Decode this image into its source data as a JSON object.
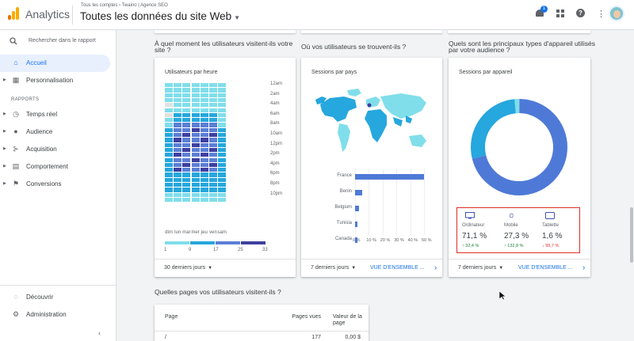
{
  "header": {
    "app_name": "Analytics",
    "breadcrumb": "Tous les comptes › Twaino | Agence SEO",
    "property": "Toutes les données du site Web",
    "notification_count": "1",
    "accent": "#1a73e8"
  },
  "sidebar": {
    "search_placeholder": "Rechercher dans le rapport",
    "home": "Accueil",
    "custom": "Personnalisation",
    "section_reports": "RAPPORTS",
    "items": [
      {
        "label": "Temps réel",
        "icon": "clock-icon"
      },
      {
        "label": "Audience",
        "icon": "person-icon"
      },
      {
        "label": "Acquisition",
        "icon": "acquisition-icon"
      },
      {
        "label": "Comportement",
        "icon": "behavior-icon"
      },
      {
        "label": "Conversions",
        "icon": "flag-icon"
      }
    ],
    "discover": "Découvrir",
    "admin": "Administration"
  },
  "questions": {
    "when": "À quel moment les utilisateurs visitent-ils votre site ?",
    "where": "Où vos utilisateurs se trouvent-ils ?",
    "devices": "Quels sont les principaux types d'appareil utilisés par votre audience ?",
    "pages": "Quelles pages vos utilisateurs visitent-ils ?"
  },
  "heatmap_card": {
    "title": "Utilisateurs par heure",
    "hours": [
      "12am",
      "2am",
      "4am",
      "6am",
      "8am",
      "10am",
      "12pm",
      "2pm",
      "4pm",
      "6pm",
      "8pm",
      "10pm"
    ],
    "days": [
      "dim",
      "lun",
      "mar",
      "mer",
      "jeu",
      "ven",
      "sam"
    ],
    "legend": [
      "1",
      "9",
      "17",
      "25",
      "33"
    ],
    "legend_colors": [
      "#80deea",
      "#26a7dd",
      "#5b7fd6",
      "#3f3fa0"
    ],
    "range": "30 derniers jours"
  },
  "map_card": {
    "title": "Sessions par pays",
    "range": "7 derniers jours",
    "link": "VUE D'ENSEMBLE ...",
    "countries": [
      "France",
      "Benin",
      "Belgium",
      "Tunisia",
      "Canada"
    ],
    "country_share_pct": [
      50,
      5,
      3,
      2,
      2
    ],
    "axis": [
      "0 %",
      "10 %",
      "20 %",
      "30 %",
      "40 %",
      "50 %"
    ]
  },
  "device_card": {
    "title": "Sessions par appareil",
    "range": "7 derniers jours",
    "link": "VUE D'ENSEMBLE ...",
    "devices": [
      {
        "name": "Ordinateur",
        "value": "71,1 %",
        "change": "↑ 32,4 %",
        "up": true,
        "share": 71.1,
        "color": "#4e79d7",
        "icon": "desktop-icon"
      },
      {
        "name": "Mobile",
        "value": "27,3 %",
        "change": "↑ 132,8 %",
        "up": true,
        "share": 27.3,
        "color": "#26a7dd",
        "icon": "mobile-icon"
      },
      {
        "name": "Tablette",
        "value": "1,6 %",
        "change": "↓ 95,7 %",
        "up": false,
        "share": 1.6,
        "color": "#80deea",
        "icon": "tablet-icon"
      }
    ]
  },
  "pages_table": {
    "col_page": "Page",
    "col_views": "Pages vues",
    "col_value": "Valeur de la page",
    "rows": [
      {
        "page": "/",
        "views": "177",
        "value": "0,00 $"
      }
    ]
  }
}
